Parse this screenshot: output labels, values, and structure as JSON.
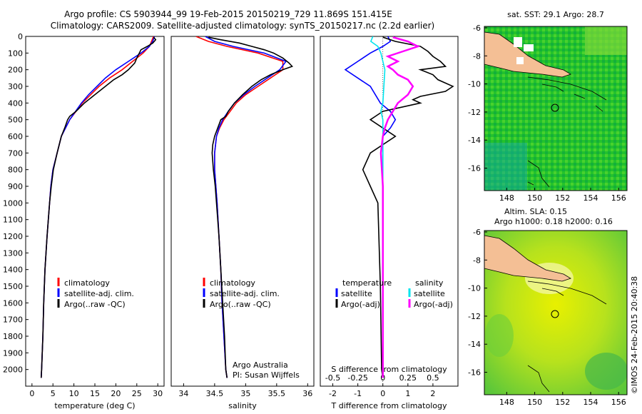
{
  "title_line1": "Argo profile: CS 5903944_99 19-Feb-2015 20150219_729 11.869S 151.415E",
  "title_line2": "Climatology: CARS2009. Satellite-adjusted climatology: synTS_20150217.nc (2.2d earlier)",
  "colors": {
    "clim": "#ff0000",
    "sat": "#0000ff",
    "argo": "#000000",
    "sat_s": "#00e5ee",
    "argo_s": "#ff00ff"
  },
  "chart_data": [
    {
      "type": "line",
      "name": "temperature",
      "xlabel": "temperature (deg C)",
      "ylabel": "",
      "xlim": [
        -1.5,
        31.5
      ],
      "ylim": [
        2100,
        0
      ],
      "xticks": [
        0,
        5,
        10,
        15,
        20,
        25,
        30
      ],
      "yticks": [
        0,
        100,
        200,
        300,
        400,
        500,
        600,
        700,
        800,
        900,
        1000,
        1100,
        1200,
        1300,
        1400,
        1500,
        1600,
        1700,
        1800,
        1900,
        2000
      ],
      "legend": [
        "climatology",
        "satellite-adj. clim.",
        "Argo(..raw -QC)"
      ],
      "series": [
        {
          "name": "climatology",
          "color": "clim",
          "depth": [
            0,
            30,
            60,
            100,
            150,
            200,
            250,
            300,
            350,
            400,
            450,
            500,
            600,
            700,
            800,
            900,
            1000,
            1200,
            1400,
            1600,
            1800,
            2000,
            2050
          ],
          "values": [
            29,
            28.5,
            28,
            26.5,
            24,
            21.5,
            18.5,
            16,
            14,
            12,
            10.5,
            9,
            7,
            6,
            5,
            4.5,
            4.2,
            3.6,
            3.1,
            2.8,
            2.6,
            2.3,
            2.2
          ]
        },
        {
          "name": "satellite-adj. clim.",
          "color": "sat",
          "depth": [
            0,
            30,
            60,
            100,
            150,
            200,
            250,
            300,
            350,
            400,
            450,
            500,
            600,
            700,
            800,
            900,
            1000,
            1200,
            1400,
            1600,
            1800,
            2000,
            2050
          ],
          "values": [
            29.2,
            28.8,
            28,
            26,
            23,
            20,
            17.5,
            15.5,
            13.5,
            11.8,
            10.4,
            9,
            7,
            6,
            5,
            4.5,
            4.2,
            3.6,
            3.1,
            2.8,
            2.6,
            2.3,
            2.2
          ]
        },
        {
          "name": "Argo",
          "color": "argo",
          "depth": [
            5,
            20,
            40,
            60,
            80,
            100,
            130,
            160,
            200,
            230,
            260,
            300,
            350,
            400,
            450,
            480,
            500,
            550,
            600,
            700,
            800,
            900,
            1000,
            1100,
            1200,
            1400,
            1600,
            1800,
            2000,
            2050
          ],
          "values": [
            29,
            29.5,
            28.8,
            27.5,
            26,
            25.6,
            25,
            24.5,
            23,
            21.5,
            19.5,
            17.5,
            15,
            12.5,
            10.5,
            9,
            8.5,
            7.8,
            7,
            6,
            5.1,
            4.6,
            4.2,
            3.9,
            3.6,
            3.1,
            2.8,
            2.6,
            2.3,
            2.2
          ]
        }
      ]
    },
    {
      "type": "line",
      "name": "salinity",
      "xlabel": "salinity",
      "ylabel": "",
      "xlim": [
        33.8,
        36.1
      ],
      "ylim": [
        2100,
        0
      ],
      "xticks": [
        34,
        34.5,
        35,
        35.5,
        36
      ],
      "legend": [
        "climatology",
        "satellite-adj. clim.",
        "Argo(..raw -QC)"
      ],
      "annotation": [
        "Argo Australia",
        "PI: Susan Wijffels"
      ],
      "series": [
        {
          "name": "climatology",
          "color": "clim",
          "depth": [
            0,
            30,
            60,
            100,
            150,
            200,
            250,
            300,
            350,
            400,
            450,
            500,
            550,
            600,
            700,
            800,
            900,
            1000,
            1200,
            1400,
            1600,
            1800,
            2000,
            2050
          ],
          "values": [
            34.2,
            34.4,
            34.7,
            35.2,
            35.6,
            35.6,
            35.4,
            35.2,
            35,
            34.85,
            34.75,
            34.65,
            34.58,
            34.53,
            34.5,
            34.5,
            34.52,
            34.54,
            34.57,
            34.6,
            34.62,
            34.65,
            34.68,
            34.7
          ]
        },
        {
          "name": "satellite-adj. clim.",
          "color": "sat",
          "depth": [
            0,
            30,
            60,
            100,
            150,
            200,
            250,
            300,
            350,
            400,
            450,
            500,
            550,
            600,
            700,
            800,
            900,
            1000,
            1200,
            1400,
            1600,
            1800,
            2000,
            2050
          ],
          "values": [
            34.35,
            34.5,
            34.8,
            35.3,
            35.65,
            35.55,
            35.35,
            35.15,
            34.97,
            34.82,
            34.72,
            34.63,
            34.57,
            34.53,
            34.5,
            34.5,
            34.52,
            34.54,
            34.57,
            34.6,
            34.62,
            34.65,
            34.68,
            34.7
          ]
        },
        {
          "name": "Argo",
          "color": "argo",
          "depth": [
            5,
            20,
            40,
            60,
            80,
            100,
            130,
            160,
            180,
            200,
            230,
            260,
            300,
            350,
            400,
            450,
            480,
            500,
            550,
            600,
            650,
            700,
            800,
            900,
            1000,
            1200,
            1400,
            1600,
            1800,
            2000,
            2050
          ],
          "values": [
            34.4,
            34.6,
            34.9,
            35.1,
            35.3,
            35.45,
            35.6,
            35.7,
            35.75,
            35.6,
            35.4,
            35.25,
            35.1,
            34.95,
            34.82,
            34.72,
            34.68,
            34.6,
            34.55,
            34.5,
            34.47,
            34.46,
            34.48,
            34.51,
            34.53,
            34.57,
            34.6,
            34.63,
            34.66,
            34.68,
            34.7
          ]
        }
      ]
    },
    {
      "type": "line",
      "name": "difference",
      "xlabel": "T difference from climatology",
      "top_label": "S difference from climatology",
      "xlim": [
        -2.5,
        3
      ],
      "ylim": [
        2100,
        0
      ],
      "xticks": [
        -2,
        -1,
        0,
        1,
        2
      ],
      "sticks": [
        "-0.5",
        "-0.25",
        "0",
        "0.25",
        "0.5"
      ],
      "legend_t": [
        "temperature",
        "satellite",
        "Argo(-adj)"
      ],
      "legend_s": [
        "salinity",
        "satellite",
        "Argo(-adj)"
      ],
      "series": [
        {
          "name": "T satellite",
          "color": "sat",
          "depth": [
            0,
            30,
            60,
            100,
            150,
            200,
            300,
            400,
            450,
            500,
            550,
            600,
            700,
            800,
            1000,
            1500,
            2000,
            2050
          ],
          "values": [
            0.2,
            0.3,
            0,
            -0.5,
            -1,
            -1.5,
            -0.5,
            -0.1,
            0.3,
            0.5,
            0.3,
            0,
            0,
            0,
            0,
            0,
            0,
            0
          ]
        },
        {
          "name": "T Argo",
          "color": "argo",
          "depth": [
            5,
            30,
            60,
            90,
            120,
            150,
            180,
            200,
            230,
            260,
            300,
            330,
            360,
            380,
            400,
            450,
            480,
            500,
            550,
            600,
            700,
            800,
            900,
            1000,
            1500,
            2000,
            2050
          ],
          "values": [
            0,
            0.5,
            1.5,
            1.8,
            2,
            2.3,
            2.5,
            1.5,
            2,
            2.2,
            2.8,
            2.5,
            1.5,
            1.2,
            1.5,
            0,
            -0.3,
            -0.5,
            0,
            0.5,
            -0.5,
            -0.8,
            -0.5,
            -0.2,
            -0.1,
            -0.05,
            0
          ]
        },
        {
          "name": "S satellite",
          "color": "sat_s",
          "depth": [
            0,
            30,
            60,
            100,
            150,
            200,
            300,
            400,
            450,
            500,
            600,
            700,
            800,
            1000,
            1500,
            2000,
            2050
          ],
          "values": [
            -0.1,
            -0.12,
            -0.05,
            -0.02,
            0,
            0.02,
            0.01,
            0,
            -0.02,
            0,
            0,
            0,
            0,
            0,
            0,
            0,
            0
          ]
        },
        {
          "name": "S Argo",
          "color": "argo_s",
          "depth": [
            5,
            30,
            60,
            90,
            120,
            150,
            180,
            200,
            230,
            260,
            300,
            350,
            400,
            450,
            500,
            550,
            600,
            700,
            800,
            900,
            1000,
            1500,
            2000,
            2050
          ],
          "values": [
            0.1,
            0.25,
            0.35,
            0.2,
            0.05,
            0.15,
            0.05,
            0.1,
            0.15,
            0.25,
            0.3,
            0.25,
            0.15,
            0.1,
            0.05,
            0.02,
            0,
            -0.02,
            -0.01,
            0,
            0,
            0,
            0,
            0
          ]
        }
      ]
    },
    {
      "type": "heatmap",
      "name": "sst_map",
      "title": "sat. SST: 29.1  Argo: 28.7",
      "xticks": [
        148,
        150,
        152,
        154,
        156
      ],
      "yticks": [
        -6,
        -8,
        -10,
        -12,
        -14,
        -16
      ],
      "xlim": [
        146.4,
        156.6
      ],
      "ylim": [
        -17.6,
        -5.9
      ],
      "marker": {
        "lon": 151.415,
        "lat": -11.869
      }
    },
    {
      "type": "heatmap",
      "name": "sla_map",
      "title": "Altim. SLA: 0.15",
      "subtitle": "Argo h1000: 0.18 h2000: 0.16",
      "xticks": [
        148,
        150,
        152,
        154,
        156
      ],
      "yticks": [
        -6,
        -8,
        -10,
        -12,
        -14,
        -16
      ],
      "xlim": [
        146.4,
        156.6
      ],
      "ylim": [
        -17.6,
        -5.9
      ],
      "marker": {
        "lon": 151.415,
        "lat": -11.869
      }
    }
  ],
  "credit": "©IMOS 24-Feb-2015 20:40:38"
}
